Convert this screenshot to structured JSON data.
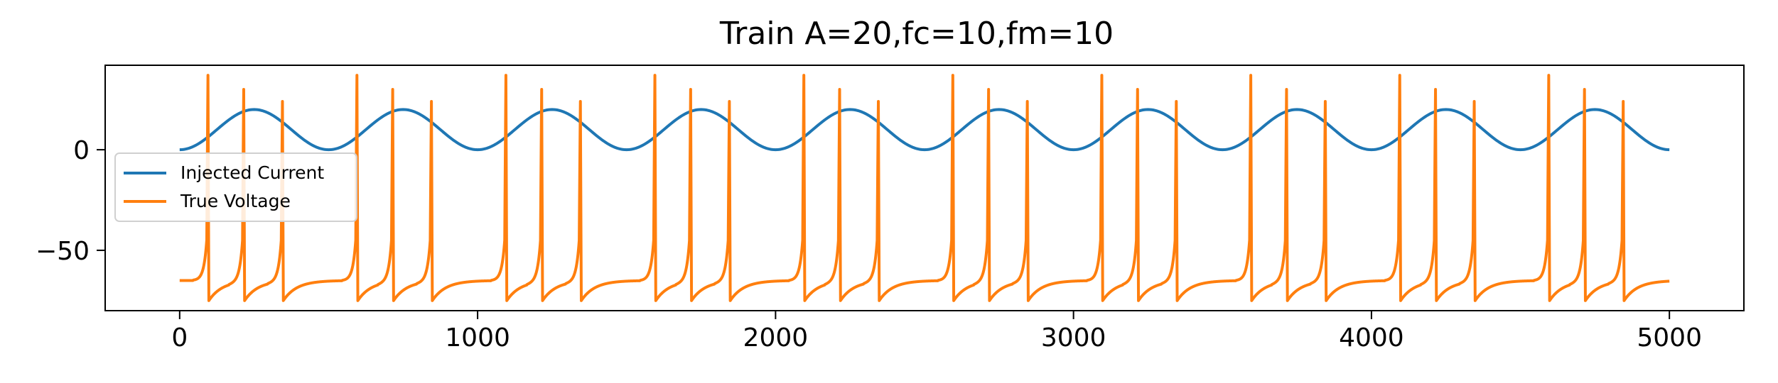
{
  "chart_data": {
    "type": "line",
    "title": "Train A=20,fc=10,fm=10",
    "xlabel": "",
    "ylabel": "",
    "xlim": [
      -250,
      5250
    ],
    "ylim": [
      -80,
      42
    ],
    "x_ticks": [
      0,
      1000,
      2000,
      3000,
      4000,
      5000
    ],
    "x_tick_labels": [
      "0",
      "1000",
      "2000",
      "3000",
      "4000",
      "5000"
    ],
    "y_ticks": [
      0,
      -50
    ],
    "y_tick_labels": [
      "0",
      "−50"
    ],
    "grid": false,
    "legend_position": "center-left",
    "series": [
      {
        "name": "Injected Current",
        "color": "#1f77b4",
        "description_values": {
          "form": "sinusoid",
          "min": 0,
          "max": 20,
          "period": 500,
          "start": 0,
          "end": 5000
        }
      },
      {
        "name": "True Voltage",
        "color": "#ff7f0e",
        "resting": -65,
        "trough": -75,
        "spike_peaks": [
          37,
          30,
          24
        ],
        "spike_times": [
          95,
          215,
          345,
          595,
          715,
          845,
          1095,
          1215,
          1345,
          1595,
          1715,
          1845,
          2095,
          2215,
          2345,
          2595,
          2715,
          2845,
          3095,
          3215,
          3345,
          3595,
          3715,
          3845,
          4095,
          4215,
          4345,
          4595,
          4715,
          4845
        ],
        "start": 0,
        "end": 5000
      }
    ]
  }
}
